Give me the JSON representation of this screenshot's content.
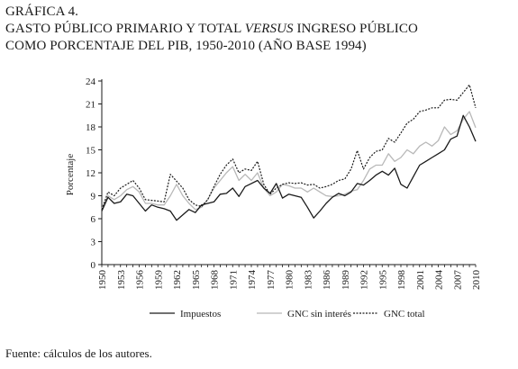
{
  "title": {
    "line1": "GRÁFICA 4.",
    "line2_a": "GASTO PÚBLICO PRIMARIO Y TOTAL ",
    "line2_b": "VERSUS",
    "line2_c": " INGRESO PÚBLICO",
    "line3": "COMO PORCENTAJE DEL PIB, 1950-2010 (AÑO BASE 1994)"
  },
  "source": "Fuente: cálculos de los autores.",
  "chart_data": {
    "type": "line",
    "ylabel": "Porcentaje",
    "xlabel": "",
    "ylim": [
      0,
      24
    ],
    "yticks": [
      "0",
      "3",
      "6",
      "9",
      "12",
      "15",
      "18",
      "21",
      "24"
    ],
    "xticks": [
      "1950",
      "1953",
      "1956",
      "1959",
      "1962",
      "1965",
      "1968",
      "1971",
      "1974",
      "1977",
      "1980",
      "1983",
      "1986",
      "1989",
      "1992",
      "1995",
      "1998",
      "2001",
      "2004",
      "2007",
      "2010"
    ],
    "legend_position": "bottom",
    "grid": false,
    "x": [
      1950,
      1951,
      1952,
      1953,
      1954,
      1955,
      1956,
      1957,
      1958,
      1959,
      1960,
      1961,
      1962,
      1963,
      1964,
      1965,
      1966,
      1967,
      1968,
      1969,
      1970,
      1971,
      1972,
      1973,
      1974,
      1975,
      1976,
      1977,
      1978,
      1979,
      1980,
      1981,
      1982,
      1983,
      1984,
      1985,
      1986,
      1987,
      1988,
      1989,
      1990,
      1991,
      1992,
      1993,
      1994,
      1995,
      1996,
      1997,
      1998,
      1999,
      2000,
      2001,
      2002,
      2003,
      2004,
      2005,
      2006,
      2007,
      2008,
      2009,
      2010
    ],
    "series": [
      {
        "name": "Impuestos",
        "style": "solid",
        "color": "#1a1a1a",
        "values": [
          7.0,
          8.8,
          8.0,
          8.2,
          9.2,
          9.0,
          8.0,
          7.0,
          7.8,
          7.5,
          7.3,
          7.0,
          5.8,
          6.5,
          7.2,
          6.8,
          7.8,
          8.0,
          8.2,
          9.2,
          9.3,
          10.0,
          8.9,
          10.2,
          10.6,
          11.0,
          10.0,
          9.3,
          10.6,
          8.7,
          9.2,
          9.0,
          8.8,
          7.5,
          6.1,
          7.0,
          8.0,
          8.8,
          9.3,
          9.0,
          9.5,
          10.6,
          10.4,
          11.0,
          11.7,
          12.2,
          11.7,
          12.6,
          10.5,
          10.0,
          11.5,
          13.0,
          13.5,
          14.0,
          14.5,
          15.0,
          16.4,
          16.8,
          19.5,
          18.0,
          16.1
        ]
      },
      {
        "name": "GNC sin interés",
        "style": "solid",
        "color": "#b8b8b8",
        "values": [
          7.3,
          9.0,
          8.5,
          9.0,
          9.8,
          10.2,
          9.5,
          8.0,
          8.0,
          7.8,
          7.8,
          9.0,
          10.5,
          9.0,
          8.0,
          7.2,
          7.5,
          8.5,
          10.0,
          11.0,
          12.0,
          12.8,
          11.0,
          11.8,
          11.0,
          12.0,
          10.0,
          9.0,
          9.5,
          10.5,
          10.3,
          10.0,
          10.0,
          9.5,
          10.0,
          9.5,
          9.0,
          8.9,
          9.0,
          9.2,
          9.6,
          9.8,
          11.0,
          12.5,
          13.0,
          13.0,
          14.5,
          13.5,
          14.0,
          15.0,
          14.5,
          15.5,
          16.0,
          15.5,
          16.2,
          18.0,
          17.0,
          17.5,
          19.0,
          20.0,
          17.9
        ]
      },
      {
        "name": "GNC total",
        "style": "dotted",
        "color": "#1a1a1a",
        "values": [
          7.2,
          9.5,
          9.0,
          10.0,
          10.5,
          11.0,
          10.0,
          8.5,
          8.4,
          8.3,
          8.2,
          11.8,
          10.9,
          10.0,
          8.5,
          7.8,
          7.6,
          8.5,
          10.2,
          11.8,
          13.0,
          13.8,
          12.0,
          12.5,
          12.3,
          13.5,
          10.5,
          9.2,
          10.0,
          10.5,
          10.7,
          10.6,
          10.7,
          10.4,
          10.5,
          10.0,
          10.2,
          10.5,
          11.0,
          11.2,
          12.5,
          14.9,
          12.5,
          14.0,
          14.8,
          15.0,
          16.5,
          16.0,
          17.2,
          18.5,
          19.0,
          20.0,
          20.2,
          20.5,
          20.5,
          21.5,
          21.6,
          21.5,
          22.5,
          23.5,
          20.5
        ]
      }
    ]
  }
}
